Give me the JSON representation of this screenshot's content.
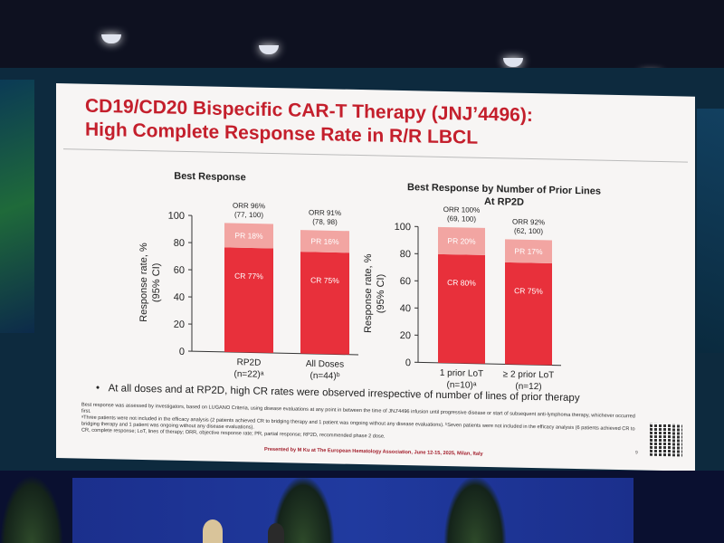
{
  "slide": {
    "title_line1": "CD19/CD20 Bispecific CAR-T Therapy (JNJ’4496):",
    "title_line2": "High Complete Response Rate in R/R LBCL",
    "bullet": "At all doses and at RP2D, high CR rates were observed irrespective of number of lines of prior therapy",
    "footnote1": "Best response was assessed by investigators, based on LUGANO Criteria, using disease evaluations at any point in between the time of JNJ’4496 infusion until progressive disease or start of subsequent anti-lymphoma therapy, whichever occurred first.",
    "footnote2": "ᵃThree patients were not included in the efficacy analysis (2 patients achieved CR to bridging therapy and 1 patient was ongoing without any disease evaluations). ᵇSeven patients were not included in the efficacy analysis (6 patients achieved CR to bridging therapy and 1 patient was ongoing without any disease evaluations).",
    "footnote3": "CR, complete response; LoT, lines of therapy; ORR, objective response rate; PR, partial response; RP2D, recommended phase 2 dose.",
    "presented": "Presented by M Ku at The European Hematology Association, June 12-15, 2025, Milan, Italy",
    "page_number": "9"
  },
  "colors": {
    "cr": "#e8303b",
    "pr": "#f2a5a2",
    "title": "#c41f2c"
  },
  "chart_data": [
    {
      "type": "bar",
      "title": "Best Response",
      "ylabel_line1": "Response rate, %",
      "ylabel_line2": "(95% CI)",
      "ylim": [
        0,
        100
      ],
      "yticks": [
        0,
        20,
        40,
        60,
        80,
        100
      ],
      "categories": [
        {
          "line1": "RP2D",
          "line2": "(n=22)ᵃ"
        },
        {
          "line1": "All Doses",
          "line2": "(n=44)ᵇ"
        }
      ],
      "series": [
        {
          "name": "CR",
          "values": [
            77,
            75
          ],
          "labels": [
            "CR 77%",
            "CR 75%"
          ]
        },
        {
          "name": "PR",
          "values": [
            18,
            16
          ],
          "labels": [
            "PR 18%",
            "PR 16%"
          ]
        }
      ],
      "orr": [
        {
          "line1": "ORR 96%",
          "line2": "(77, 100)"
        },
        {
          "line1": "ORR 91%",
          "line2": "(78, 98)"
        }
      ]
    },
    {
      "type": "bar",
      "title_line1": "Best Response by Number of Prior Lines",
      "title_line2": "At RP2D",
      "ylabel_line1": "Response rate, %",
      "ylabel_line2": "(95% CI)",
      "ylim": [
        0,
        100
      ],
      "yticks": [
        0,
        20,
        40,
        60,
        80,
        100
      ],
      "categories": [
        {
          "line1": "1 prior LoT",
          "line2": "(n=10)ᵃ"
        },
        {
          "line1": "≥ 2 prior LoT",
          "line2": "(n=12)"
        }
      ],
      "series": [
        {
          "name": "CR",
          "values": [
            80,
            75
          ],
          "labels": [
            "CR 80%",
            "CR 75%"
          ]
        },
        {
          "name": "PR",
          "values": [
            20,
            17
          ],
          "labels": [
            "PR 20%",
            "PR 17%"
          ]
        }
      ],
      "orr": [
        {
          "line1": "ORR 100%",
          "line2": "(69, 100)"
        },
        {
          "line1": "ORR 92%",
          "line2": "(62, 100)"
        }
      ]
    }
  ]
}
